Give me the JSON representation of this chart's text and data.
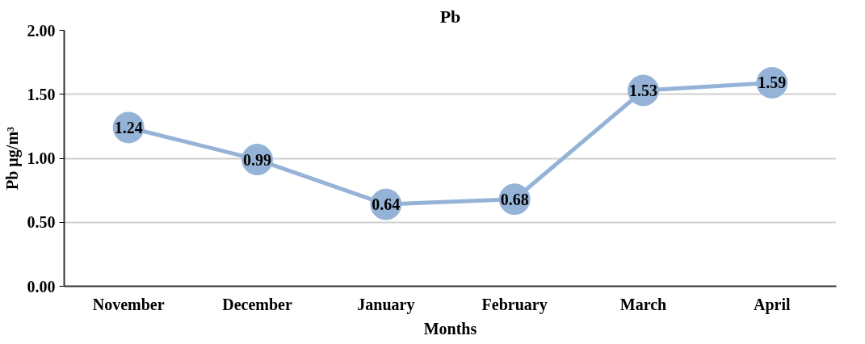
{
  "chart_data": {
    "type": "line",
    "title": "Pb",
    "xlabel": "Months",
    "ylabel": "Pb µg/m³",
    "categories": [
      "November",
      "December",
      "January",
      "February",
      "March",
      "April"
    ],
    "series": [
      {
        "color": "#95b3d7",
        "values": [
          1.24,
          0.99,
          0.64,
          0.68,
          1.53,
          1.59
        ]
      }
    ],
    "ylim": [
      0,
      2
    ],
    "yticks": [
      {
        "value": 0,
        "label": "0.00"
      },
      {
        "value": 0.5,
        "label": "0.50"
      },
      {
        "value": 1,
        "label": "1.00"
      },
      {
        "value": 1.5,
        "label": "1.50"
      },
      {
        "value": 2,
        "label": "2.00"
      }
    ],
    "grid": "y",
    "marker": "circle",
    "line_style": "solid",
    "data_labels": true
  }
}
